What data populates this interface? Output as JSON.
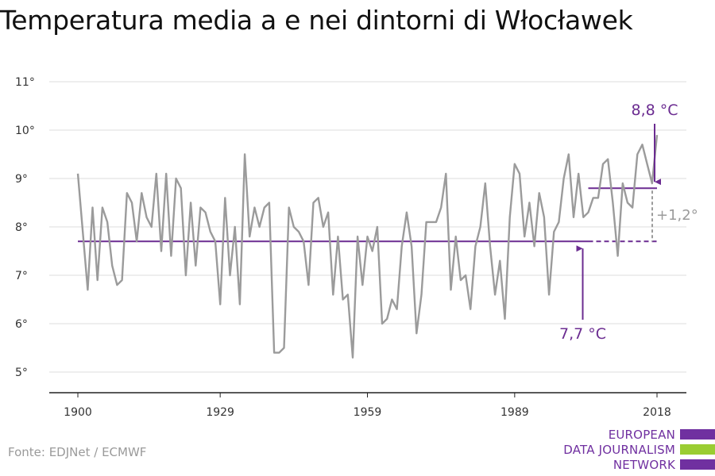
{
  "title": "Temperatura media a e nei dintorni di Włocławek",
  "source": "Fonte: EDJNet / ECMWF",
  "logo": {
    "lines": [
      "EUROPEAN",
      "DATA JOURNALISM",
      "NETWORK"
    ],
    "colors": [
      "#7030a0",
      "#9acd32",
      "#7030a0"
    ]
  },
  "colors": {
    "series": "#9b9b9b",
    "accent": "#6b2c91",
    "grid": "#dddddd",
    "axis": "#222222"
  },
  "chart_data": {
    "type": "line",
    "title": "Temperatura media a e nei dintorni di Włocławek",
    "xlabel": "",
    "ylabel": "",
    "xlim": [
      1900,
      2018
    ],
    "ylim": [
      5,
      11
    ],
    "x_ticks": [
      1900,
      1929,
      1959,
      1989,
      2018
    ],
    "y_ticks": [
      {
        "value": 5,
        "label": "5°"
      },
      {
        "value": 6,
        "label": "6°"
      },
      {
        "value": 7,
        "label": "7°"
      },
      {
        "value": 8,
        "label": "8°"
      },
      {
        "value": 9,
        "label": "9°"
      },
      {
        "value": 10,
        "label": "10°"
      },
      {
        "value": 11,
        "label": "11°"
      }
    ],
    "grid": true,
    "series": [
      {
        "x_start": 1900,
        "values": [
          9.1,
          7.9,
          6.7,
          8.4,
          6.9,
          8.4,
          8.1,
          7.2,
          6.8,
          6.9,
          8.7,
          8.5,
          7.7,
          8.7,
          8.2,
          8.0,
          9.1,
          7.5,
          9.1,
          7.4,
          9.0,
          8.8,
          7.0,
          8.5,
          7.2,
          8.4,
          8.3,
          7.9,
          7.7,
          6.4,
          8.6,
          7.0,
          8.0,
          6.4,
          9.5,
          7.8,
          8.4,
          8.0,
          8.4,
          8.5,
          5.4,
          5.4,
          5.5,
          8.4,
          8.0,
          7.9,
          7.7,
          6.8,
          8.5,
          8.6,
          8.0,
          8.3,
          6.6,
          7.8,
          6.5,
          6.6,
          5.3,
          7.8,
          6.8,
          7.8,
          7.5,
          8.0,
          6.0,
          6.1,
          6.5,
          6.3,
          7.6,
          8.3,
          7.6,
          5.8,
          6.6,
          8.1,
          8.1,
          8.1,
          8.4,
          9.1,
          6.7,
          7.8,
          6.9,
          7.0,
          6.3,
          7.6,
          8.0,
          8.9,
          7.6,
          6.6,
          7.3,
          6.1,
          8.2,
          9.3,
          9.1,
          7.8,
          8.5,
          7.6,
          8.7,
          8.2,
          6.6,
          7.9,
          8.1,
          9.0,
          9.5,
          8.2,
          9.1,
          8.2,
          8.3,
          8.6,
          8.6,
          9.3,
          9.4,
          8.5,
          7.4,
          8.9,
          8.5,
          8.4,
          9.5,
          9.7,
          9.3,
          8.9,
          9.9
        ]
      }
    ],
    "baseline": {
      "value": 7.7,
      "label": "7,7 °C",
      "x_from": 1900,
      "x_solid_to": 2004,
      "x_dashed_to": 2018
    },
    "recent": {
      "value": 8.8,
      "label": "8,8 °C",
      "x_from": 2004,
      "x_to": 2018
    },
    "difference": {
      "label": "+1,2°"
    }
  }
}
